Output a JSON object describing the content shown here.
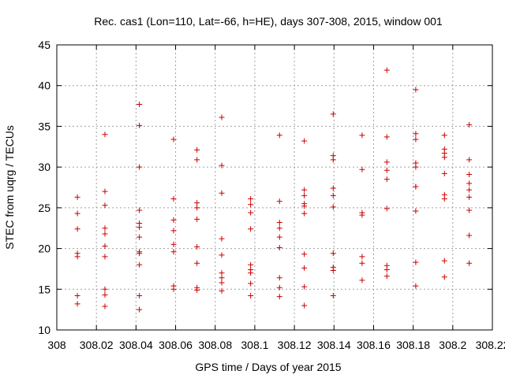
{
  "chart_data": {
    "type": "scatter",
    "title": "Rec. cas1 (Lon=110, Lat=-66, h=HE), days 307-308, 2015, window 001",
    "xlabel": "GPS time / Days of year 2015",
    "ylabel": "STEC from uqrg / TECUs",
    "xlim": [
      308,
      308.22
    ],
    "ylim": [
      10,
      45
    ],
    "x_ticks": [
      308,
      308.02,
      308.04,
      308.06,
      308.08,
      308.1,
      308.12,
      308.14,
      308.16,
      308.18,
      308.2,
      308.22
    ],
    "x_tick_labels": [
      "308",
      "308.02",
      "308.04",
      "308.06",
      "308.08",
      "308.1",
      "308.12",
      "308.14",
      "308.16",
      "308.18",
      "308.2",
      "308.22"
    ],
    "y_ticks": [
      10,
      15,
      20,
      25,
      30,
      35,
      40,
      45
    ],
    "y_tick_labels": [
      "10",
      "15",
      "20",
      "25",
      "30",
      "35",
      "40",
      "45"
    ],
    "grid": true,
    "legend": "none",
    "marker": "+",
    "marker_color": "#cc0000",
    "points": [
      {
        "x": 308.0104,
        "y": 26.3
      },
      {
        "x": 308.0104,
        "y": 24.3
      },
      {
        "x": 308.0104,
        "y": 22.4
      },
      {
        "x": 308.0104,
        "y": 19.4
      },
      {
        "x": 308.0104,
        "y": 19.0
      },
      {
        "x": 308.0104,
        "y": 14.2
      },
      {
        "x": 308.0104,
        "y": 13.2
      },
      {
        "x": 308.0243,
        "y": 34.0
      },
      {
        "x": 308.0243,
        "y": 27.0
      },
      {
        "x": 308.0243,
        "y": 25.3
      },
      {
        "x": 308.0243,
        "y": 22.5
      },
      {
        "x": 308.0243,
        "y": 21.8
      },
      {
        "x": 308.0243,
        "y": 20.3
      },
      {
        "x": 308.0243,
        "y": 19.0
      },
      {
        "x": 308.0243,
        "y": 15.0
      },
      {
        "x": 308.0243,
        "y": 14.3
      },
      {
        "x": 308.0243,
        "y": 12.9
      },
      {
        "x": 308.0417,
        "y": 37.7
      },
      {
        "x": 308.0417,
        "y": 35.1
      },
      {
        "x": 308.0417,
        "y": 30.0
      },
      {
        "x": 308.0417,
        "y": 24.7
      },
      {
        "x": 308.0417,
        "y": 23.1
      },
      {
        "x": 308.0417,
        "y": 22.6
      },
      {
        "x": 308.0417,
        "y": 21.4
      },
      {
        "x": 308.0417,
        "y": 19.6
      },
      {
        "x": 308.0417,
        "y": 19.4
      },
      {
        "x": 308.0417,
        "y": 18.0
      },
      {
        "x": 308.0417,
        "y": 14.2
      },
      {
        "x": 308.0417,
        "y": 12.5
      },
      {
        "x": 308.059,
        "y": 33.4
      },
      {
        "x": 308.059,
        "y": 26.1
      },
      {
        "x": 308.059,
        "y": 23.5
      },
      {
        "x": 308.059,
        "y": 22.2
      },
      {
        "x": 308.059,
        "y": 20.5
      },
      {
        "x": 308.059,
        "y": 19.6
      },
      {
        "x": 308.059,
        "y": 15.4
      },
      {
        "x": 308.059,
        "y": 15.0
      },
      {
        "x": 308.0708,
        "y": 32.1
      },
      {
        "x": 308.0708,
        "y": 30.9
      },
      {
        "x": 308.0708,
        "y": 25.6
      },
      {
        "x": 308.0708,
        "y": 25.0
      },
      {
        "x": 308.0708,
        "y": 23.6
      },
      {
        "x": 308.0708,
        "y": 20.2
      },
      {
        "x": 308.0708,
        "y": 18.2
      },
      {
        "x": 308.0708,
        "y": 15.2
      },
      {
        "x": 308.0708,
        "y": 14.9
      },
      {
        "x": 308.0833,
        "y": 36.1
      },
      {
        "x": 308.0833,
        "y": 30.2
      },
      {
        "x": 308.0833,
        "y": 26.8
      },
      {
        "x": 308.0833,
        "y": 21.2
      },
      {
        "x": 308.0833,
        "y": 19.2
      },
      {
        "x": 308.0833,
        "y": 17.0
      },
      {
        "x": 308.0833,
        "y": 16.4
      },
      {
        "x": 308.0833,
        "y": 15.8
      },
      {
        "x": 308.0833,
        "y": 14.8
      },
      {
        "x": 308.0979,
        "y": 26.1
      },
      {
        "x": 308.0979,
        "y": 25.4
      },
      {
        "x": 308.0979,
        "y": 24.4
      },
      {
        "x": 308.0979,
        "y": 22.4
      },
      {
        "x": 308.0979,
        "y": 18.0
      },
      {
        "x": 308.0979,
        "y": 17.4
      },
      {
        "x": 308.0979,
        "y": 17.0
      },
      {
        "x": 308.0979,
        "y": 15.7
      },
      {
        "x": 308.0979,
        "y": 14.2
      },
      {
        "x": 308.1125,
        "y": 33.9
      },
      {
        "x": 308.1125,
        "y": 25.8
      },
      {
        "x": 308.1125,
        "y": 23.2
      },
      {
        "x": 308.1125,
        "y": 22.5
      },
      {
        "x": 308.1125,
        "y": 21.4
      },
      {
        "x": 308.1125,
        "y": 20.1
      },
      {
        "x": 308.1125,
        "y": 16.4
      },
      {
        "x": 308.1125,
        "y": 15.2
      },
      {
        "x": 308.1125,
        "y": 14.1
      },
      {
        "x": 308.125,
        "y": 33.2
      },
      {
        "x": 308.125,
        "y": 27.2
      },
      {
        "x": 308.125,
        "y": 26.5
      },
      {
        "x": 308.125,
        "y": 25.5
      },
      {
        "x": 308.125,
        "y": 25.2
      },
      {
        "x": 308.125,
        "y": 24.3
      },
      {
        "x": 308.125,
        "y": 19.3
      },
      {
        "x": 308.125,
        "y": 17.6
      },
      {
        "x": 308.125,
        "y": 15.3
      },
      {
        "x": 308.125,
        "y": 13.0
      },
      {
        "x": 308.1396,
        "y": 36.5
      },
      {
        "x": 308.1396,
        "y": 31.4
      },
      {
        "x": 308.1396,
        "y": 30.9
      },
      {
        "x": 308.1396,
        "y": 27.4
      },
      {
        "x": 308.1396,
        "y": 26.5
      },
      {
        "x": 308.1396,
        "y": 25.1
      },
      {
        "x": 308.1396,
        "y": 19.4
      },
      {
        "x": 308.1396,
        "y": 17.7
      },
      {
        "x": 308.1396,
        "y": 17.3
      },
      {
        "x": 308.1396,
        "y": 14.2
      },
      {
        "x": 308.1542,
        "y": 33.9
      },
      {
        "x": 308.1542,
        "y": 29.7
      },
      {
        "x": 308.1542,
        "y": 24.4
      },
      {
        "x": 308.1542,
        "y": 24.1
      },
      {
        "x": 308.1542,
        "y": 19.0
      },
      {
        "x": 308.1542,
        "y": 18.2
      },
      {
        "x": 308.1542,
        "y": 16.1
      },
      {
        "x": 308.1667,
        "y": 41.9
      },
      {
        "x": 308.1667,
        "y": 33.7
      },
      {
        "x": 308.1667,
        "y": 30.6
      },
      {
        "x": 308.1667,
        "y": 29.6
      },
      {
        "x": 308.1667,
        "y": 28.5
      },
      {
        "x": 308.1667,
        "y": 24.9
      },
      {
        "x": 308.1667,
        "y": 17.9
      },
      {
        "x": 308.1667,
        "y": 17.4
      },
      {
        "x": 308.1667,
        "y": 16.6
      },
      {
        "x": 308.1813,
        "y": 39.5
      },
      {
        "x": 308.1813,
        "y": 34.1
      },
      {
        "x": 308.1813,
        "y": 33.4
      },
      {
        "x": 308.1813,
        "y": 30.5
      },
      {
        "x": 308.1813,
        "y": 30.0
      },
      {
        "x": 308.1813,
        "y": 27.6
      },
      {
        "x": 308.1813,
        "y": 27.6
      },
      {
        "x": 308.1813,
        "y": 24.6
      },
      {
        "x": 308.1813,
        "y": 18.3
      },
      {
        "x": 308.1813,
        "y": 15.4
      },
      {
        "x": 308.1958,
        "y": 33.9
      },
      {
        "x": 308.1958,
        "y": 32.2
      },
      {
        "x": 308.1958,
        "y": 31.7
      },
      {
        "x": 308.1958,
        "y": 31.2
      },
      {
        "x": 308.1958,
        "y": 29.2
      },
      {
        "x": 308.1958,
        "y": 26.6
      },
      {
        "x": 308.1958,
        "y": 26.1
      },
      {
        "x": 308.1958,
        "y": 18.5
      },
      {
        "x": 308.1958,
        "y": 16.5
      },
      {
        "x": 308.2083,
        "y": 35.2
      },
      {
        "x": 308.2083,
        "y": 30.9
      },
      {
        "x": 308.2083,
        "y": 29.1
      },
      {
        "x": 308.2083,
        "y": 28.0
      },
      {
        "x": 308.2083,
        "y": 27.2
      },
      {
        "x": 308.2083,
        "y": 26.3
      },
      {
        "x": 308.2083,
        "y": 24.7
      },
      {
        "x": 308.2083,
        "y": 21.6
      },
      {
        "x": 308.2083,
        "y": 18.2
      }
    ]
  }
}
